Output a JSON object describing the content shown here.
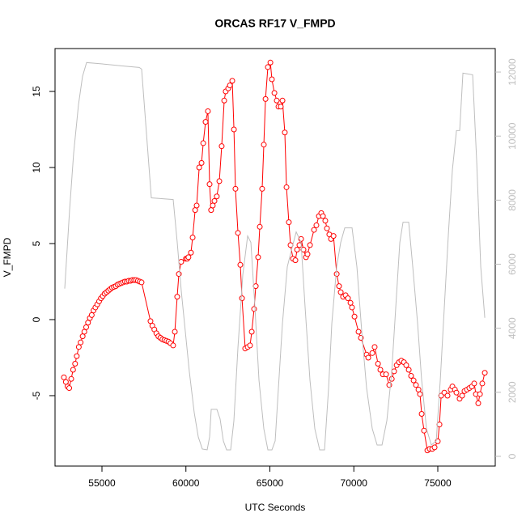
{
  "chart_data": {
    "type": "line",
    "title": "ORCAS RF17 V_FMPD",
    "x_label": "UTC Seconds",
    "y_label": "V_FMPD",
    "xlim": [
      52205,
      78422
    ],
    "ylim": [
      -9.63,
      17.82
    ],
    "y2lim": [
      -304,
      12734
    ],
    "xticks": [
      55000,
      60000,
      65000,
      70000,
      75000
    ],
    "yticks": [
      -5,
      0,
      5,
      10,
      15
    ],
    "y2ticks": [
      0,
      2000,
      4000,
      6000,
      8000,
      10000,
      12000
    ],
    "y2_color": "#bebebe",
    "series": [
      {
        "color": "#ff0000",
        "marker": "circle",
        "x": [
          52735,
          52850,
          52950,
          53050,
          53170,
          53280,
          53400,
          53500,
          53620,
          53730,
          53850,
          53950,
          54060,
          54170,
          54280,
          54390,
          54500,
          54610,
          54720,
          54830,
          54940,
          55050,
          55160,
          55270,
          55380,
          55490,
          55600,
          55710,
          55820,
          55930,
          56040,
          56150,
          56260,
          56370,
          56480,
          56590,
          56700,
          56810,
          56920,
          57030,
          57140,
          57250,
          57360,
          57890,
          58000,
          58120,
          58240,
          58360,
          58480,
          58600,
          58720,
          58840,
          58960,
          59080,
          59240,
          59340,
          59480,
          59580,
          59720,
          60000,
          60080,
          60150,
          60300,
          60400,
          60550,
          60640,
          60790,
          60930,
          61030,
          61170,
          61310,
          61410,
          61500,
          61600,
          61700,
          61840,
          61990,
          62130,
          62280,
          62370,
          62520,
          62620,
          62760,
          62860,
          62950,
          63100,
          63240,
          63340,
          63530,
          63680,
          63820,
          63920,
          64060,
          64160,
          64300,
          64400,
          64540,
          64640,
          64740,
          64880,
          65030,
          65120,
          65270,
          65410,
          65510,
          65650,
          65750,
          65890,
          65990,
          66130,
          66230,
          66380,
          66520,
          66620,
          66760,
          66860,
          67000,
          67150,
          67240,
          67390,
          67630,
          67770,
          67920,
          68060,
          68160,
          68300,
          68400,
          68540,
          68640,
          68790,
          68980,
          69120,
          69220,
          69360,
          69510,
          69650,
          69800,
          69890,
          70040,
          70280,
          70420,
          70760,
          70860,
          71100,
          71240,
          71440,
          71580,
          71730,
          71920,
          72110,
          72260,
          72400,
          72550,
          72690,
          72830,
          72980,
          73120,
          73270,
          73410,
          73560,
          73700,
          73850,
          73940,
          74040,
          74180,
          74380,
          74520,
          74670,
          74810,
          75000,
          75100,
          75200,
          75390,
          75580,
          75770,
          75870,
          76020,
          76110,
          76300,
          76450,
          76590,
          76740,
          76880,
          77030,
          77170,
          77270,
          77410,
          77510,
          77650,
          77800
        ],
        "values": [
          -3.8,
          -4.1,
          -4.4,
          -4.5,
          -3.9,
          -3.3,
          -2.9,
          -2.4,
          -1.8,
          -1.5,
          -1.1,
          -0.8,
          -0.5,
          -0.2,
          0.1,
          0.3,
          0.6,
          0.8,
          1.0,
          1.2,
          1.4,
          1.55,
          1.7,
          1.8,
          1.9,
          2.0,
          2.1,
          2.15,
          2.2,
          2.3,
          2.35,
          2.4,
          2.45,
          2.5,
          2.5,
          2.55,
          2.55,
          2.6,
          2.6,
          2.6,
          2.55,
          2.5,
          2.45,
          -0.1,
          -0.4,
          -0.65,
          -0.9,
          -1.1,
          -1.2,
          -1.3,
          -1.35,
          -1.4,
          -1.45,
          -1.55,
          -1.7,
          -0.8,
          1.5,
          3.0,
          3.8,
          4.0,
          4.0,
          4.1,
          4.4,
          5.4,
          7.2,
          7.5,
          10.0,
          10.3,
          11.6,
          13.0,
          13.7,
          8.9,
          7.2,
          7.5,
          7.8,
          8.1,
          9.1,
          11.4,
          14.4,
          15.0,
          15.2,
          15.4,
          15.7,
          12.5,
          8.6,
          5.7,
          3.6,
          1.4,
          -1.9,
          -1.8,
          -1.7,
          -0.8,
          0.7,
          2.2,
          4.1,
          6.1,
          8.6,
          11.5,
          14.5,
          16.6,
          16.9,
          15.8,
          14.9,
          14.4,
          14.0,
          14.0,
          14.4,
          12.3,
          8.7,
          6.4,
          4.9,
          4.0,
          3.9,
          4.6,
          4.9,
          5.3,
          4.6,
          4.1,
          4.3,
          4.9,
          5.9,
          6.2,
          6.8,
          7.0,
          6.8,
          6.5,
          6.0,
          5.6,
          5.3,
          5.5,
          3.0,
          2.2,
          1.8,
          1.5,
          1.6,
          1.4,
          1.1,
          0.8,
          0.2,
          -0.8,
          -1.2,
          -2.3,
          -2.5,
          -2.2,
          -1.8,
          -2.9,
          -3.3,
          -3.6,
          -3.6,
          -4.3,
          -3.9,
          -3.4,
          -3.0,
          -2.8,
          -2.7,
          -2.8,
          -3.0,
          -3.3,
          -3.7,
          -4.0,
          -4.3,
          -4.6,
          -4.9,
          -6.2,
          -7.3,
          -8.6,
          -8.5,
          -8.5,
          -8.4,
          -8.0,
          -6.9,
          -5.0,
          -4.8,
          -5.0,
          -4.6,
          -4.4,
          -4.6,
          -4.8,
          -5.2,
          -5.0,
          -4.7,
          -4.6,
          -4.5,
          -4.4,
          -4.2,
          -4.9,
          -5.5,
          -4.9,
          -4.2,
          -3.5
        ]
      },
      {
        "color": "#bebebe",
        "axis": "y2",
        "x": [
          52783,
          53072,
          53313,
          53602,
          53843,
          54084,
          55193,
          56157,
          57217,
          57362,
          57940,
          59242,
          59483,
          59724,
          59965,
          60206,
          60495,
          60736,
          60977,
          61266,
          61411,
          61507,
          61844,
          62037,
          62230,
          62423,
          62664,
          62857,
          63098,
          63387,
          63676,
          63869,
          64110,
          64351,
          64640,
          64881,
          65122,
          65315,
          65508,
          65749,
          66038,
          66279,
          66568,
          66857,
          67098,
          67387,
          67677,
          67966,
          68255,
          68496,
          68689,
          68978,
          69219,
          69460,
          69894,
          70183,
          70472,
          70761,
          71099,
          71388,
          71677,
          71966,
          72256,
          72497,
          72738,
          72930,
          73268,
          73509,
          73798,
          74039,
          74328,
          74617,
          74907,
          75148,
          75389,
          75630,
          75871,
          76112,
          76304,
          76497,
          77076,
          77317,
          77558,
          77799
        ],
        "values": [
          5237,
          7691,
          9462,
          10980,
          11866,
          12296,
          12245,
          12195,
          12144,
          12093,
          8071,
          8020,
          6679,
          5161,
          3896,
          2631,
          1366,
          607,
          228,
          202,
          607,
          1467,
          1467,
          1164,
          481,
          202,
          202,
          1113,
          3390,
          5667,
          6882,
          6679,
          4655,
          2378,
          860,
          202,
          202,
          481,
          2125,
          4149,
          5920,
          6426,
          7008,
          6679,
          4655,
          2378,
          860,
          202,
          202,
          2125,
          4149,
          5920,
          6679,
          7135,
          7135,
          5920,
          3896,
          2125,
          860,
          354,
          354,
          1113,
          2631,
          4655,
          6679,
          7312,
          7312,
          5920,
          4149,
          2378,
          860,
          354,
          481,
          2378,
          4655,
          6932,
          8956,
          10171,
          10171,
          11967,
          11916,
          9209,
          5920,
          4326
        ]
      }
    ]
  }
}
